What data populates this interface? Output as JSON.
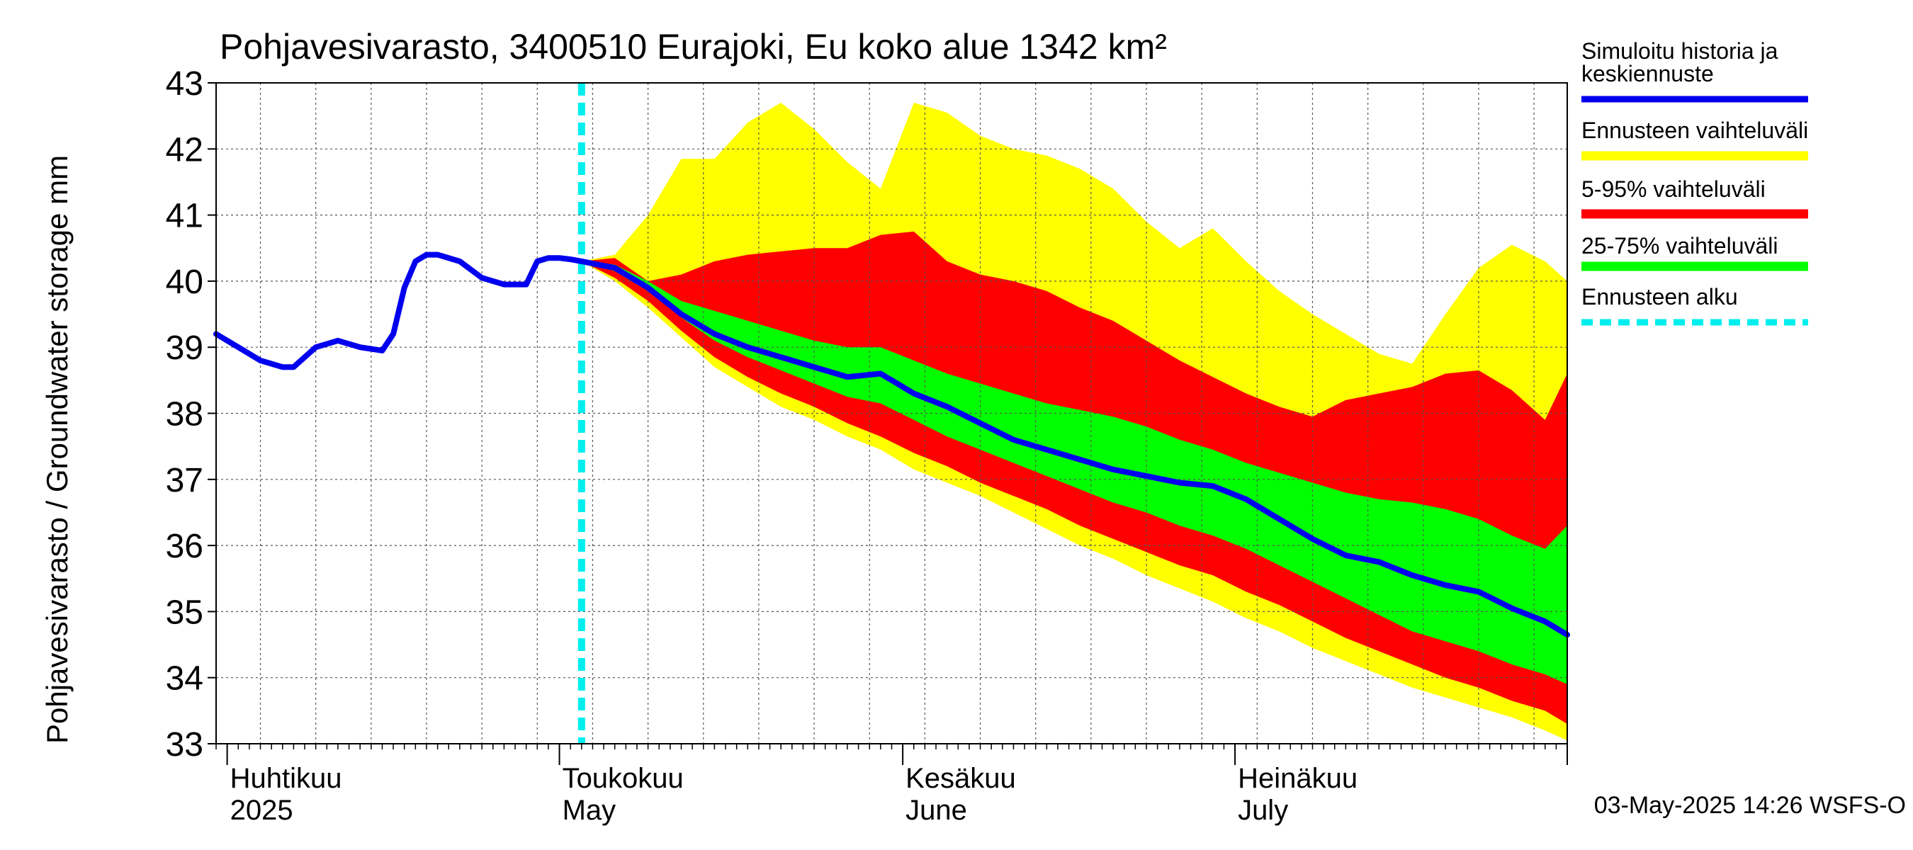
{
  "chart_data": {
    "type": "area",
    "title": "Pohjavesivarasto, 3400510 Eurajoki, Eu koko alue 1342 km²",
    "ylabel": "Pohjavesivarasto / Groundwater storage   mm",
    "ylim": [
      33,
      43
    ],
    "yticks": [
      33,
      34,
      35,
      36,
      37,
      38,
      39,
      40,
      41,
      42,
      43
    ],
    "xlim": [
      "2025-03-31",
      "2025-07-31"
    ],
    "grid": true,
    "month_labels": [
      {
        "date": "2025-04-01",
        "line1": "Huhtikuu",
        "line2": "2025"
      },
      {
        "date": "2025-05-01",
        "line1": "Toukokuu",
        "line2": "May"
      },
      {
        "date": "2025-06-01",
        "line1": "Kesäkuu",
        "line2": "June"
      },
      {
        "date": "2025-07-01",
        "line1": "Heinäkuu",
        "line2": "July"
      }
    ],
    "forecast_start": "2025-05-03",
    "footer": "03-May-2025 14:26 WSFS-O",
    "legend": {
      "placement": "right",
      "entries": [
        {
          "label": "Simuloitu historia ja keskiennuste",
          "color": "#0000ee",
          "style": "line"
        },
        {
          "label": "Ennusteen vaihteluväli",
          "color": "#ffff00",
          "style": "band"
        },
        {
          "label": "5-95% vaihteluväli",
          "color": "#ff0000",
          "style": "band"
        },
        {
          "label": "25-75% vaihteluväli",
          "color": "#00ff00",
          "style": "band"
        },
        {
          "label": "Ennusteen alku",
          "color": "#00eeee",
          "style": "dashed"
        }
      ]
    },
    "history": {
      "name": "Simuloitu historia ja keskiennuste",
      "color": "#0000ee",
      "x": [
        "2025-03-31",
        "2025-04-02",
        "2025-04-04",
        "2025-04-06",
        "2025-04-07",
        "2025-04-09",
        "2025-04-11",
        "2025-04-13",
        "2025-04-15",
        "2025-04-16",
        "2025-04-17",
        "2025-04-18",
        "2025-04-19",
        "2025-04-20",
        "2025-04-22",
        "2025-04-24",
        "2025-04-26",
        "2025-04-28",
        "2025-04-29",
        "2025-04-30",
        "2025-05-01",
        "2025-05-02",
        "2025-05-03"
      ],
      "y": [
        39.2,
        39.0,
        38.8,
        38.7,
        38.7,
        39.0,
        39.1,
        39.0,
        38.95,
        39.2,
        39.9,
        40.3,
        40.4,
        40.4,
        40.3,
        40.05,
        39.95,
        39.95,
        40.3,
        40.35,
        40.35,
        40.33,
        40.3
      ]
    },
    "forecast": {
      "x": [
        "2025-05-03",
        "2025-05-06",
        "2025-05-09",
        "2025-05-12",
        "2025-05-15",
        "2025-05-18",
        "2025-05-21",
        "2025-05-24",
        "2025-05-27",
        "2025-05-30",
        "2025-06-02",
        "2025-06-05",
        "2025-06-08",
        "2025-06-11",
        "2025-06-14",
        "2025-06-17",
        "2025-06-20",
        "2025-06-23",
        "2025-06-26",
        "2025-06-29",
        "2025-07-02",
        "2025-07-05",
        "2025-07-08",
        "2025-07-11",
        "2025-07-14",
        "2025-07-17",
        "2025-07-20",
        "2025-07-23",
        "2025-07-26",
        "2025-07-29",
        "2025-07-31"
      ],
      "mean": [
        40.3,
        40.2,
        39.9,
        39.5,
        39.2,
        39.0,
        38.85,
        38.7,
        38.55,
        38.6,
        38.3,
        38.1,
        37.85,
        37.6,
        37.45,
        37.3,
        37.15,
        37.05,
        36.95,
        36.9,
        36.7,
        36.4,
        36.1,
        35.85,
        35.75,
        35.55,
        35.4,
        35.3,
        35.05,
        34.85,
        34.65
      ],
      "p25": [
        40.3,
        40.15,
        39.85,
        39.45,
        39.1,
        38.85,
        38.65,
        38.45,
        38.25,
        38.15,
        37.9,
        37.65,
        37.45,
        37.25,
        37.05,
        36.85,
        36.65,
        36.5,
        36.3,
        36.15,
        35.95,
        35.7,
        35.45,
        35.2,
        34.95,
        34.7,
        34.55,
        34.4,
        34.2,
        34.05,
        33.9
      ],
      "p75": [
        40.3,
        40.25,
        40.0,
        39.7,
        39.55,
        39.4,
        39.25,
        39.1,
        39.0,
        39.0,
        38.8,
        38.6,
        38.45,
        38.3,
        38.15,
        38.05,
        37.95,
        37.8,
        37.6,
        37.45,
        37.25,
        37.1,
        36.95,
        36.8,
        36.7,
        36.65,
        36.55,
        36.4,
        36.15,
        35.95,
        36.3
      ],
      "p05": [
        40.3,
        40.05,
        39.7,
        39.25,
        38.85,
        38.55,
        38.3,
        38.1,
        37.85,
        37.65,
        37.4,
        37.2,
        36.95,
        36.75,
        36.55,
        36.3,
        36.1,
        35.9,
        35.7,
        35.55,
        35.3,
        35.1,
        34.85,
        34.6,
        34.4,
        34.2,
        34.0,
        33.85,
        33.65,
        33.5,
        33.3
      ],
      "p95": [
        40.3,
        40.35,
        40.0,
        40.1,
        40.3,
        40.4,
        40.45,
        40.5,
        40.5,
        40.7,
        40.75,
        40.3,
        40.1,
        40.0,
        39.85,
        39.6,
        39.4,
        39.1,
        38.8,
        38.55,
        38.3,
        38.1,
        37.95,
        38.2,
        38.3,
        38.4,
        38.6,
        38.65,
        38.35,
        37.9,
        38.6
      ],
      "min": [
        40.3,
        40.0,
        39.6,
        39.15,
        38.7,
        38.4,
        38.1,
        37.9,
        37.65,
        37.45,
        37.15,
        36.95,
        36.75,
        36.5,
        36.25,
        36.0,
        35.8,
        35.55,
        35.35,
        35.15,
        34.9,
        34.7,
        34.45,
        34.25,
        34.05,
        33.85,
        33.7,
        33.55,
        33.4,
        33.2,
        33.05
      ],
      "max": [
        40.3,
        40.4,
        41.0,
        41.85,
        41.85,
        42.4,
        42.7,
        42.3,
        41.8,
        41.4,
        42.7,
        42.55,
        42.2,
        42.0,
        41.9,
        41.7,
        41.4,
        40.9,
        40.5,
        40.8,
        40.3,
        39.85,
        39.5,
        39.2,
        38.9,
        38.75,
        39.5,
        40.2,
        40.55,
        40.3,
        40.0
      ]
    }
  }
}
